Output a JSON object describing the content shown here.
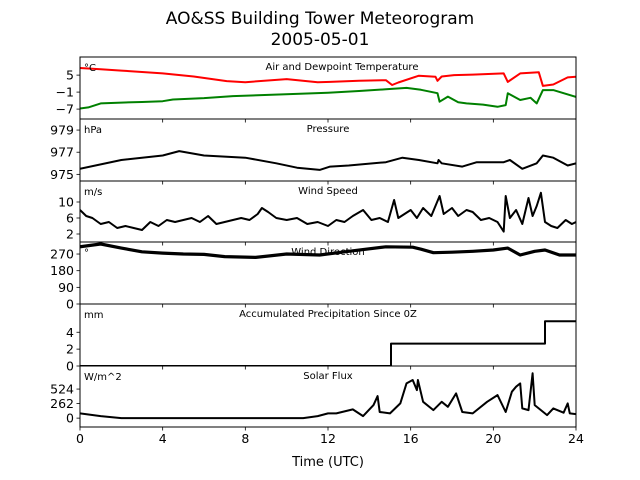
{
  "title_line1": "AO&SS Building Tower Meteorogram",
  "title_line2": "2005-05-01",
  "chart_data": {
    "type": "line",
    "xlabel": "Time (UTC)",
    "xlim": [
      0,
      24
    ],
    "xticks": [
      0,
      4,
      8,
      12,
      16,
      20,
      24
    ],
    "panels": [
      {
        "title": "Air and Dewpoint Temperature",
        "unit": "°C",
        "ylim": [
          -10.5,
          11.4
        ],
        "yticks": [
          5,
          -1,
          -7
        ],
        "series": [
          {
            "name": "Air Temperature",
            "color": "#ff0000",
            "x": [
              0,
              1,
              2,
              4,
              5.5,
              7.1,
              8,
              10,
              11.5,
              12.1,
              13.5,
              14.8,
              15.1,
              15.4,
              16.4,
              17.2,
              17.3,
              17.5,
              18.1,
              19,
              20.5,
              20.7,
              21.3,
              22.2,
              22.4,
              22.9,
              23.6,
              24
            ],
            "y": [
              7.5,
              7.1,
              6.6,
              5.6,
              4.5,
              2.9,
              2.5,
              3.6,
              2.5,
              2.6,
              3,
              3.2,
              1.5,
              2.4,
              4.8,
              4.4,
              3,
              4.5,
              5,
              5.2,
              5.6,
              2.6,
              5.6,
              6,
              1.2,
              1.7,
              4.2,
              4.4
            ]
          },
          {
            "name": "Dewpoint Temperature",
            "color": "#008000",
            "x": [
              0,
              0.4,
              1,
              2,
              3,
              4,
              4.5,
              6,
              7.4,
              9.8,
              12,
              13.5,
              14.8,
              15.8,
              16.5,
              17.3,
              17.4,
              17.8,
              18.3,
              18.7,
              19.5,
              20.2,
              20.6,
              20.7,
              21.3,
              21.8,
              22.1,
              22.4,
              22.9,
              24
            ],
            "y": [
              -6.8,
              -6.4,
              -5,
              -4.7,
              -4.5,
              -4.2,
              -3.6,
              -3.1,
              -2.4,
              -1.8,
              -1.2,
              -0.6,
              0,
              0.5,
              -0.2,
              -1.4,
              -4.4,
              -2.6,
              -4.6,
              -5,
              -5.4,
              -6.2,
              -5.6,
              -1.4,
              -3.8,
              -3,
              -5,
              -0.3,
              -0.3,
              -2.7
            ]
          }
        ]
      },
      {
        "title": "Pressure",
        "unit": "hPa",
        "ylim": [
          974.4,
          980
        ],
        "yticks": [
          979,
          977,
          975
        ],
        "series": [
          {
            "name": "Pressure",
            "color": "#000000",
            "x": [
              0,
              2,
              4,
              4.8,
              6,
              8,
              9.5,
              10.5,
              11.6,
              12.1,
              13,
              14.8,
              15.6,
              16.4,
              17.3,
              17.35,
              17.5,
              18.5,
              19.2,
              20.5,
              20.8,
              21.4,
              22.1,
              22.4,
              22.9,
              23.6,
              24
            ],
            "y": [
              975.5,
              976.3,
              976.7,
              977.1,
              976.7,
              976.5,
              976,
              975.6,
              975.4,
              975.7,
              975.8,
              976.1,
              976.5,
              976.3,
              976,
              976.3,
              976,
              975.7,
              976.1,
              976.1,
              976.3,
              975.5,
              976,
              976.7,
              976.5,
              975.8,
              976
            ]
          }
        ]
      },
      {
        "title": "Wind Speed",
        "unit": "m/s",
        "ylim": [
          0,
          15.25
        ],
        "yticks": [
          10,
          6,
          2
        ],
        "series": [
          {
            "name": "Wind Speed",
            "color": "#000000",
            "x": [
              0,
              0.3,
              0.6,
              1,
              1.4,
              1.8,
              2.2,
              2.6,
              3,
              3.4,
              3.8,
              4.2,
              4.6,
              5,
              5.4,
              5.8,
              6.2,
              6.6,
              7,
              7.4,
              7.8,
              8.2,
              8.6,
              8.8,
              9.1,
              9.5,
              10,
              10.5,
              11,
              11.5,
              12,
              12.4,
              12.8,
              13.2,
              13.7,
              14.1,
              14.5,
              14.9,
              15.2,
              15.4,
              15.7,
              16,
              16.3,
              16.6,
              17,
              17.4,
              17.6,
              18,
              18.3,
              18.7,
              19,
              19.4,
              19.8,
              20.2,
              20.5,
              20.6,
              20.8,
              21.1,
              21.4,
              21.7,
              21.9,
              22.1,
              22.3,
              22.5,
              22.8,
              23.1,
              23.5,
              23.8,
              24
            ],
            "y": [
              8,
              6.5,
              6,
              4.5,
              5,
              3.5,
              4,
              3.5,
              3,
              5,
              4,
              5.5,
              5,
              5.5,
              6,
              5,
              6.5,
              4.5,
              5,
              5.5,
              6,
              5.5,
              7,
              8.5,
              7.5,
              6,
              5.5,
              6,
              4.5,
              5,
              4,
              5.5,
              5,
              6.5,
              8,
              5.5,
              6,
              5,
              10.5,
              6,
              7,
              8,
              6,
              8.5,
              6.5,
              11.5,
              7,
              8.5,
              6.5,
              8,
              7.5,
              5.5,
              6,
              5,
              2.6,
              11.5,
              6,
              8,
              4.5,
              11,
              6.5,
              9,
              12.3,
              5,
              4,
              3.5,
              5.5,
              4.5,
              5
            ]
          }
        ]
      },
      {
        "title": "Wind Direction",
        "unit": "°",
        "ylim": [
          0,
          335
        ],
        "yticks": [
          270,
          180,
          90,
          0
        ],
        "series": [
          {
            "name": "Wind Direction",
            "color": "#000000",
            "x": [
              0,
              1,
              2,
              3,
              4,
              5,
              6,
              7,
              8.5,
              10,
              11.6,
              13,
              14.8,
              16.1,
              16.5,
              17.1,
              18,
              19,
              20,
              20.7,
              21.3,
              22,
              22.5,
              23.2,
              24
            ],
            "y": [
              309,
              324,
              302,
              282,
              275,
              270,
              268,
              256,
              252,
              270,
              265,
              285,
              309,
              307,
              296,
              277,
              280,
              285,
              292,
              302,
              265,
              285,
              292,
              265,
              265
            ]
          }
        ]
      },
      {
        "title": "Accumulated Precipitation Since 0Z",
        "unit": "mm",
        "ylim": [
          0,
          7.35
        ],
        "yticks": [
          4,
          2,
          0
        ],
        "series": [
          {
            "name": "Accumulated Precipitation",
            "color": "#000000",
            "x": [
              0,
              15.05,
              15.05,
              22.5,
              22.5,
              24
            ],
            "y": [
              0,
              0,
              2.65,
              2.65,
              5.3,
              5.3
            ]
          }
        ]
      },
      {
        "title": "Solar Flux",
        "unit": "W/m^2",
        "ylim": [
          -160,
          940
        ],
        "yticks": [
          524,
          262,
          0
        ],
        "series": [
          {
            "name": "Solar Flux",
            "color": "#000000",
            "x": [
              0,
              1,
              2,
              10.8,
              11.5,
              12,
              12.4,
              13.2,
              13.7,
              14.2,
              14.4,
              14.5,
              15,
              15.5,
              15.8,
              16.1,
              16.3,
              16.35,
              16.6,
              17.1,
              17.5,
              17.8,
              18.2,
              18.5,
              19,
              19.7,
              20.2,
              20.6,
              20.9,
              21.1,
              21.3,
              21.4,
              21.7,
              21.9,
              22,
              22.6,
              22.9,
              23.4,
              23.6,
              23.7,
              24
            ],
            "y": [
              85,
              36,
              0,
              0,
              36,
              85,
              85,
              157,
              36,
              235,
              397,
              111,
              85,
              265,
              627,
              687,
              506,
              687,
              295,
              145,
              295,
              205,
              446,
              111,
              85,
              295,
              416,
              111,
              476,
              566,
              627,
              175,
              145,
              808,
              235,
              54,
              175,
              97,
              265,
              85,
              73
            ]
          }
        ]
      }
    ]
  }
}
